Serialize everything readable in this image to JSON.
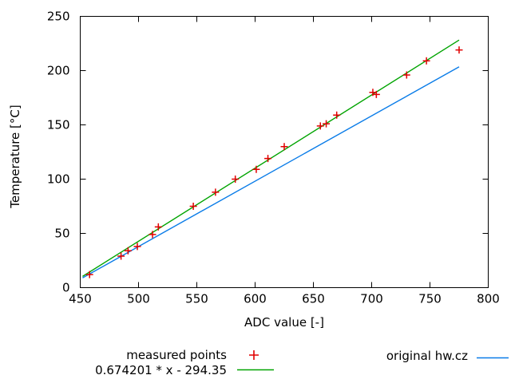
{
  "chart_data": {
    "type": "scatter",
    "title": "",
    "xlabel": "ADC value [-]",
    "ylabel": "Temperature [°C]",
    "xlim": [
      450,
      800
    ],
    "ylim": [
      0,
      250
    ],
    "x_ticks": [
      450,
      500,
      550,
      600,
      650,
      700,
      750,
      800
    ],
    "y_ticks": [
      0,
      50,
      100,
      150,
      200,
      250
    ],
    "grid": false,
    "legend_position": "bottom",
    "background_color": "#ffffff",
    "axis_color": "#000000",
    "series": [
      {
        "name": "measured points",
        "type": "points",
        "marker": "plus",
        "color": "#e10000",
        "points": [
          [
            458,
            12
          ],
          [
            485,
            29
          ],
          [
            491,
            34
          ],
          [
            499,
            38
          ],
          [
            512,
            49
          ],
          [
            517,
            56
          ],
          [
            547,
            75
          ],
          [
            566,
            88
          ],
          [
            583,
            100
          ],
          [
            601,
            109
          ],
          [
            611,
            119
          ],
          [
            625,
            130
          ],
          [
            656,
            149
          ],
          [
            661,
            151
          ],
          [
            670,
            159
          ],
          [
            701,
            180
          ],
          [
            704,
            178
          ],
          [
            730,
            196
          ],
          [
            747,
            209
          ],
          [
            775,
            219
          ]
        ]
      },
      {
        "name": "0.674201 * x - 294.35",
        "type": "line",
        "color": "#00a400",
        "slope": 0.674201,
        "intercept": -294.35,
        "x_range": [
          452,
          775
        ]
      },
      {
        "name": "original hw.cz",
        "type": "line",
        "color": "#0a7ce8",
        "points": [
          [
            452,
            9
          ],
          [
            775,
            203.5
          ]
        ]
      }
    ]
  }
}
